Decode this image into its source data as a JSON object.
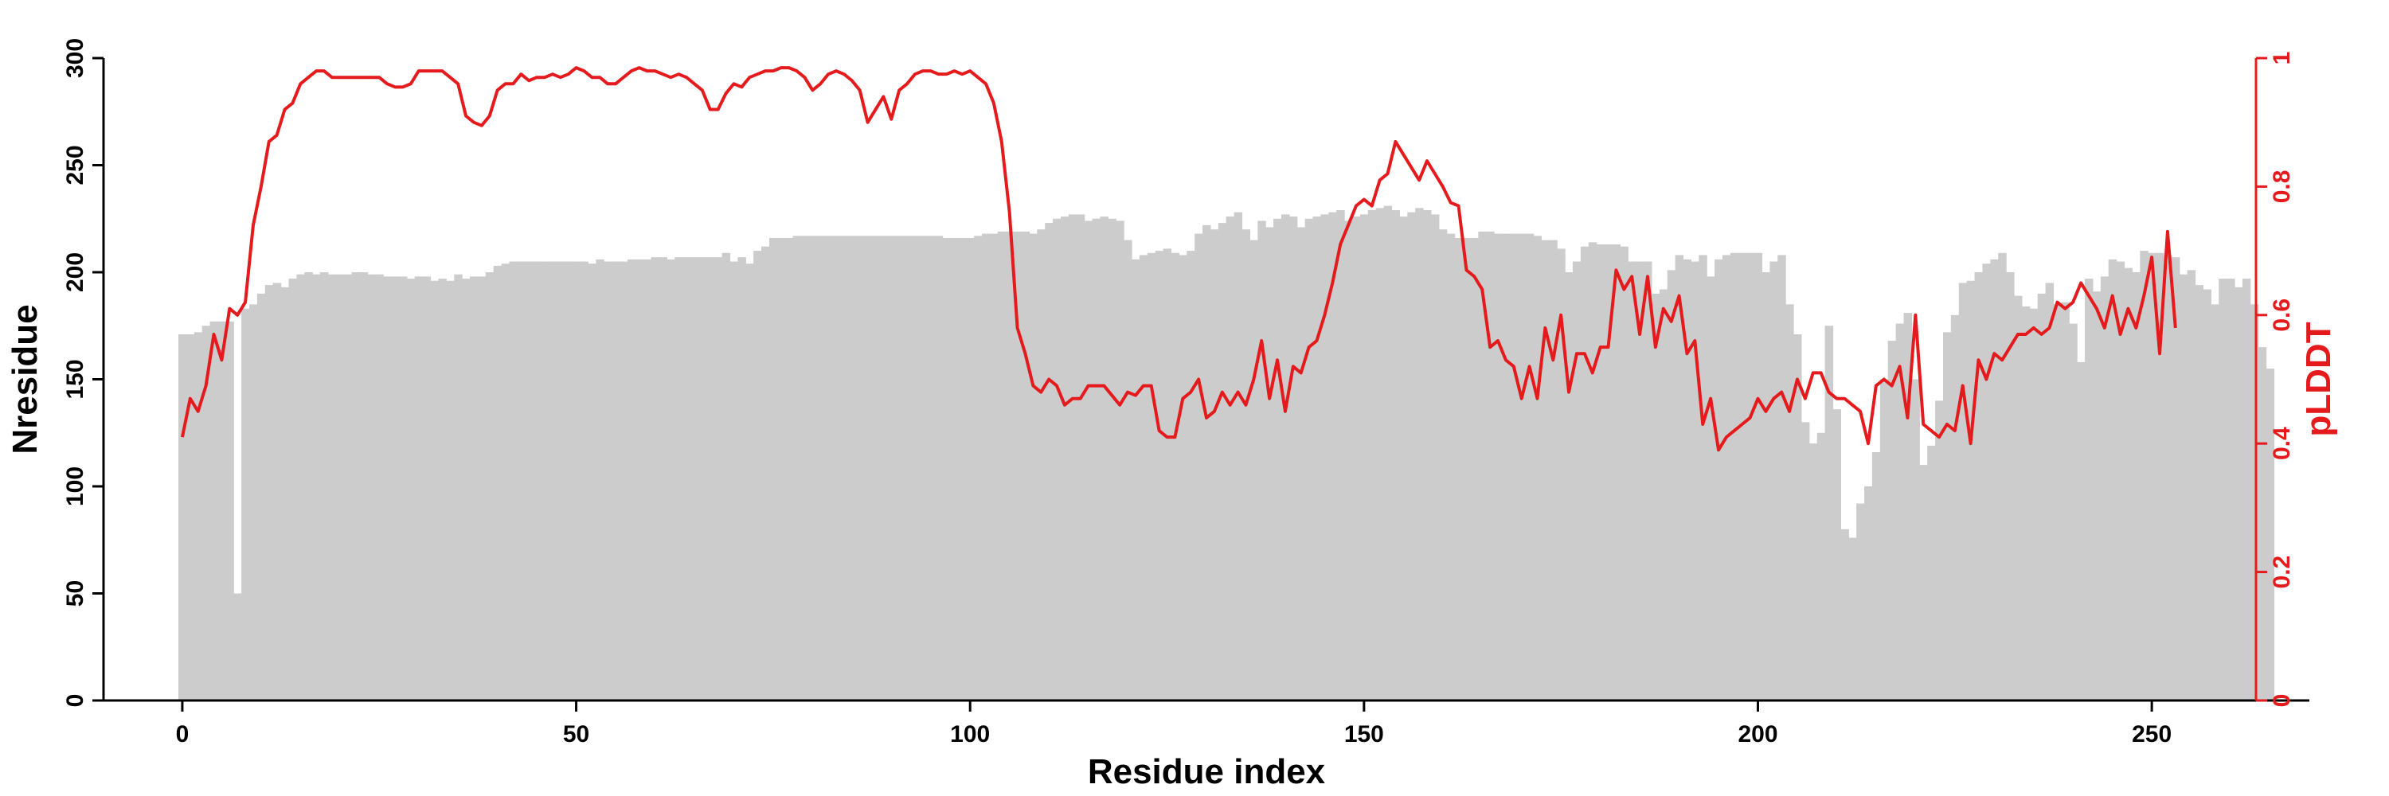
{
  "chart_data": {
    "type": "bar+line",
    "xlabel": "Residue index",
    "ylabel_left": "Nresidue",
    "ylabel_right": "pLDDT",
    "xlim": [
      -10,
      270
    ],
    "ylim_left": [
      0,
      300
    ],
    "ylim_right": [
      0,
      1
    ],
    "xticks": [
      0,
      50,
      100,
      150,
      200,
      250
    ],
    "yticks_left": [
      0,
      50,
      100,
      150,
      200,
      250,
      300
    ],
    "yticks_right": [
      0,
      0.2,
      0.4,
      0.6,
      0.8,
      1
    ],
    "colors": {
      "bars": "#cccccc",
      "line": "#e41a1c",
      "axis": "#000000"
    },
    "bar_series": {
      "name": "Nresidue",
      "x_start": 0,
      "values": [
        171,
        171,
        172,
        175,
        177,
        177,
        177,
        50,
        183,
        185,
        190,
        194,
        195,
        193,
        197,
        199,
        200,
        199,
        200,
        199,
        199,
        199,
        200,
        200,
        199,
        199,
        198,
        198,
        198,
        197,
        198,
        198,
        196,
        197,
        196,
        199,
        197,
        198,
        198,
        200,
        203,
        204,
        205,
        205,
        205,
        205,
        205,
        205,
        205,
        205,
        205,
        205,
        204,
        206,
        205,
        205,
        205,
        206,
        206,
        206,
        207,
        207,
        206,
        207,
        207,
        207,
        207,
        207,
        207,
        209,
        205,
        207,
        204,
        210,
        212,
        216,
        216,
        216,
        217,
        217,
        217,
        217,
        217,
        217,
        217,
        217,
        217,
        217,
        217,
        217,
        217,
        217,
        217,
        217,
        217,
        217,
        217,
        216,
        216,
        216,
        216,
        217,
        218,
        218,
        219,
        219,
        219,
        219,
        218,
        220,
        223,
        225,
        226,
        227,
        227,
        224,
        225,
        226,
        225,
        224,
        215,
        206,
        208,
        209,
        210,
        211,
        209,
        208,
        210,
        218,
        222,
        220,
        223,
        226,
        228,
        220,
        215,
        224,
        221,
        225,
        227,
        226,
        221,
        225,
        226,
        227,
        228,
        229,
        224,
        226,
        227,
        229,
        230,
        231,
        229,
        226,
        228,
        230,
        229,
        227,
        220,
        218,
        216,
        216,
        216,
        219,
        219,
        218,
        218,
        218,
        218,
        218,
        217,
        215,
        215,
        211,
        200,
        205,
        212,
        214,
        213,
        213,
        213,
        212,
        205,
        205,
        205,
        190,
        192,
        201,
        208,
        206,
        205,
        208,
        198,
        206,
        208,
        209,
        209,
        209,
        209,
        200,
        205,
        208,
        185,
        171,
        130,
        120,
        125,
        175,
        136,
        80,
        76,
        92,
        100,
        116,
        150,
        168,
        176,
        181,
        150,
        110,
        119,
        140,
        172,
        180,
        195,
        196,
        200,
        204,
        206,
        209,
        200,
        189,
        184,
        183,
        190,
        195,
        185,
        186,
        176,
        158,
        197,
        191,
        198,
        206,
        205,
        202,
        200,
        210,
        209,
        209,
        208,
        207,
        199,
        201,
        194,
        192,
        185,
        197,
        197,
        193,
        197,
        185,
        165,
        155
      ]
    },
    "line_series": {
      "name": "pLDDT",
      "x_start": 0,
      "values": [
        0.41,
        0.47,
        0.45,
        0.49,
        0.57,
        0.53,
        0.61,
        0.6,
        0.62,
        0.74,
        0.8,
        0.87,
        0.88,
        0.92,
        0.93,
        0.96,
        0.97,
        0.98,
        0.98,
        0.97,
        0.97,
        0.97,
        0.97,
        0.97,
        0.97,
        0.97,
        0.96,
        0.955,
        0.955,
        0.96,
        0.98,
        0.98,
        0.98,
        0.98,
        0.97,
        0.96,
        0.91,
        0.9,
        0.895,
        0.91,
        0.95,
        0.96,
        0.96,
        0.975,
        0.965,
        0.97,
        0.97,
        0.975,
        0.97,
        0.975,
        0.985,
        0.98,
        0.97,
        0.97,
        0.96,
        0.96,
        0.97,
        0.98,
        0.985,
        0.98,
        0.98,
        0.975,
        0.97,
        0.975,
        0.97,
        0.96,
        0.95,
        0.92,
        0.92,
        0.945,
        0.96,
        0.955,
        0.97,
        0.975,
        0.98,
        0.98,
        0.985,
        0.985,
        0.98,
        0.97,
        0.95,
        0.96,
        0.975,
        0.98,
        0.975,
        0.965,
        0.95,
        0.9,
        0.92,
        0.94,
        0.905,
        0.95,
        0.96,
        0.975,
        0.98,
        0.98,
        0.975,
        0.975,
        0.98,
        0.975,
        0.98,
        0.97,
        0.96,
        0.93,
        0.87,
        0.76,
        0.58,
        0.54,
        0.49,
        0.48,
        0.5,
        0.49,
        0.46,
        0.47,
        0.47,
        0.49,
        0.49,
        0.49,
        0.475,
        0.46,
        0.48,
        0.475,
        0.49,
        0.49,
        0.42,
        0.41,
        0.41,
        0.47,
        0.48,
        0.5,
        0.44,
        0.45,
        0.48,
        0.46,
        0.48,
        0.46,
        0.5,
        0.56,
        0.47,
        0.53,
        0.45,
        0.52,
        0.51,
        0.55,
        0.56,
        0.6,
        0.65,
        0.71,
        0.74,
        0.77,
        0.78,
        0.77,
        0.81,
        0.82,
        0.87,
        0.85,
        0.83,
        0.81,
        0.84,
        0.82,
        0.8,
        0.775,
        0.77,
        0.67,
        0.66,
        0.64,
        0.55,
        0.56,
        0.53,
        0.52,
        0.47,
        0.52,
        0.47,
        0.58,
        0.53,
        0.6,
        0.48,
        0.54,
        0.54,
        0.51,
        0.55,
        0.55,
        0.67,
        0.64,
        0.66,
        0.57,
        0.66,
        0.55,
        0.61,
        0.59,
        0.63,
        0.54,
        0.56,
        0.43,
        0.47,
        0.39,
        0.41,
        0.42,
        0.43,
        0.44,
        0.47,
        0.45,
        0.47,
        0.48,
        0.45,
        0.5,
        0.47,
        0.51,
        0.51,
        0.48,
        0.47,
        0.47,
        0.46,
        0.45,
        0.4,
        0.49,
        0.5,
        0.49,
        0.52,
        0.44,
        0.6,
        0.43,
        0.42,
        0.41,
        0.43,
        0.42,
        0.49,
        0.4,
        0.53,
        0.5,
        0.54,
        0.53,
        0.55,
        0.57,
        0.57,
        0.58,
        0.57,
        0.58,
        0.62,
        0.61,
        0.62,
        0.65,
        0.63,
        0.61,
        0.58,
        0.63,
        0.57,
        0.61,
        0.58,
        0.63,
        0.69,
        0.54,
        0.73,
        0.58
      ]
    }
  }
}
